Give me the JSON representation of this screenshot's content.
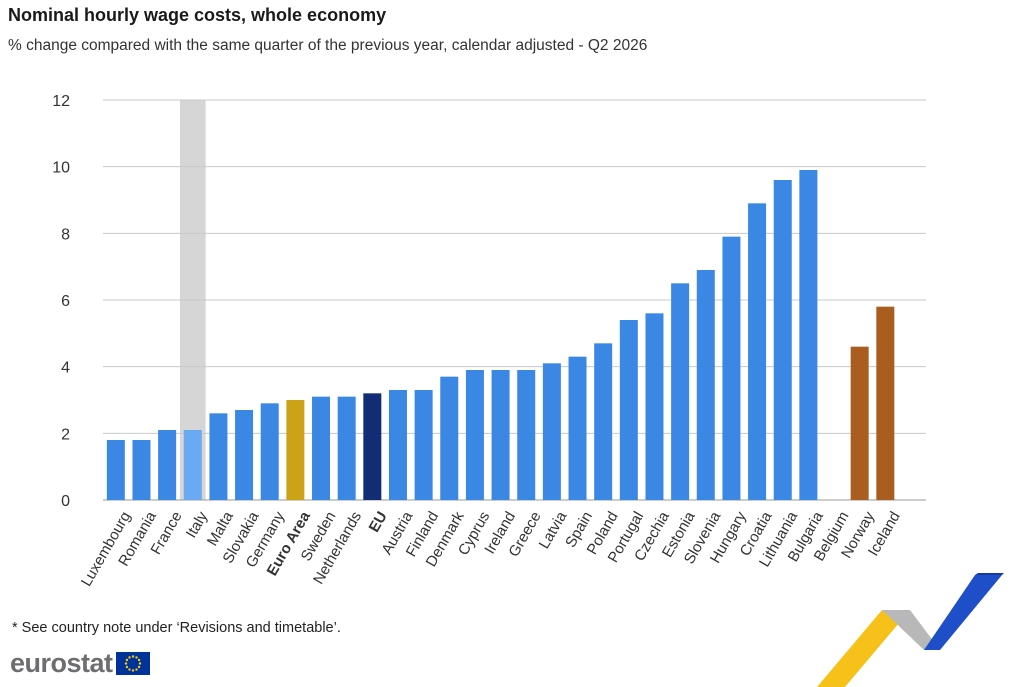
{
  "header": {
    "title": "Nominal hourly wage costs, whole economy",
    "subtitle": "% change compared with the same quarter of the previous year, calendar adjusted - Q2 2026"
  },
  "footer": {
    "note": "* See country note under ‘Revisions and timetable’.",
    "logo_text": "eurostat"
  },
  "colors": {
    "country": "#3a87e4",
    "euro_area": "#cca316",
    "eu": "#122d74",
    "efta": "#a95e1f",
    "italy_bar": "#6aaaf3",
    "italy_highlight": "#d6d6d6",
    "grid": "#c8c8c8"
  },
  "chart_data": {
    "type": "bar",
    "title": "Nominal hourly wage costs, whole economy",
    "subtitle": "% change compared with the same quarter of the previous year, calendar adjusted - Q2 2026",
    "xlabel": "",
    "ylabel": "",
    "ylim": [
      0,
      12
    ],
    "yticks": [
      0,
      2,
      4,
      6,
      8,
      10,
      12
    ],
    "grid": true,
    "highlighted_category": "Italy",
    "categories": [
      "Luxembourg",
      "Romania",
      "France",
      "Italy",
      "Malta",
      "Slovakia",
      "Germany",
      "Euro Area",
      "Sweden",
      "Netherlands",
      "EU",
      "Austria",
      "Finland",
      "Denmark",
      "Cyprus",
      "Ireland",
      "Greece",
      "Latvia",
      "Spain",
      "Poland",
      "Portugal",
      "Czechia",
      "Estonia",
      "Slovenia",
      "Hungary",
      "Croatia",
      "Lithuania",
      "Bulgaria",
      "Belgium",
      "Norway",
      "Iceland"
    ],
    "values": [
      1.8,
      1.8,
      2.1,
      2.1,
      2.6,
      2.7,
      2.9,
      3.0,
      3.1,
      3.1,
      3.2,
      3.3,
      3.3,
      3.7,
      3.9,
      3.9,
      3.9,
      4.1,
      4.3,
      4.7,
      5.4,
      5.6,
      6.5,
      6.9,
      7.9,
      8.9,
      9.6,
      9.9,
      null,
      4.6,
      5.8
    ],
    "groups": [
      "country",
      "country",
      "country",
      "country",
      "country",
      "country",
      "country",
      "euro_area",
      "country",
      "country",
      "eu",
      "country",
      "country",
      "country",
      "country",
      "country",
      "country",
      "country",
      "country",
      "country",
      "country",
      "country",
      "country",
      "country",
      "country",
      "country",
      "country",
      "country",
      "country",
      "efta",
      "efta"
    ],
    "bold_labels": [
      "Euro Area",
      "EU"
    ]
  }
}
